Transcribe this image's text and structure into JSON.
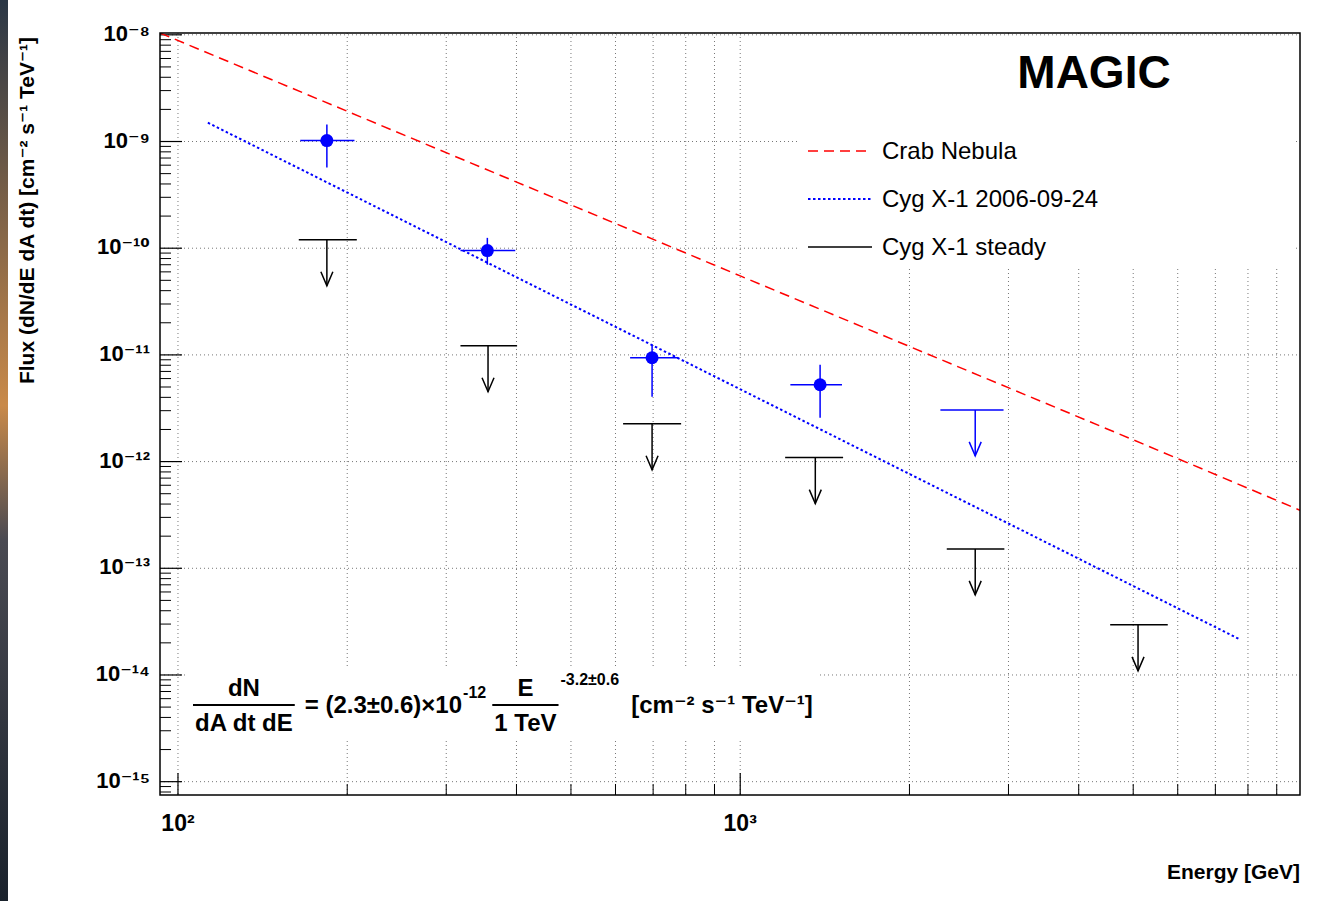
{
  "chart_data": {
    "type": "line",
    "title": "MAGIC",
    "x_label": "Energy [GeV]",
    "y_label": "Flux (dN/dE dA dt) [cm⁻² s⁻¹ TeV⁻¹]",
    "log": true,
    "grid": true,
    "legend": "top-right",
    "xlim": [
      92.9,
      9900
    ],
    "ylim": [
      7.5e-16,
      1.04e-08
    ],
    "xticks": [
      {
        "value": 100,
        "label": "10²"
      },
      {
        "value": 1000,
        "label": "10³"
      }
    ],
    "yticks": [
      {
        "value": 1e-15,
        "label": "10⁻¹⁵"
      },
      {
        "value": 1e-14,
        "label": "10⁻¹⁴"
      },
      {
        "value": 1e-13,
        "label": "10⁻¹³"
      },
      {
        "value": 1e-12,
        "label": "10⁻¹²"
      },
      {
        "value": 1e-11,
        "label": "10⁻¹¹"
      },
      {
        "value": 1e-10,
        "label": "10⁻¹⁰"
      },
      {
        "value": 1e-09,
        "label": "10⁻⁹"
      },
      {
        "value": 1e-08,
        "label": "10⁻⁸"
      }
    ],
    "series": [
      {
        "name": "Crab Nebula",
        "type": "line",
        "color": "#ff0000",
        "line_style": "dashed",
        "x": [
          92.9,
          200,
          500,
          1000,
          2000,
          5000,
          9900
        ],
        "values": [
          1.04e-08,
          1.92e-09,
          2.55e-10,
          5.5e-11,
          1.2e-11,
          1.6e-12,
          3.5e-13
        ]
      },
      {
        "name": "Cyg X-1 2006-09-24",
        "type": "line",
        "color": "#0000ff",
        "line_style": "dotted",
        "x": [
          113,
          7760
        ],
        "values": [
          1.5e-09,
          2.14e-14
        ],
        "flux_points": {
          "marker": "circle",
          "x": [
            184,
            355,
            697,
            1387
          ],
          "values": [
            1.02e-09,
            9.5e-11,
            9.4e-12,
            5.25e-12
          ],
          "x_lower": [
            165,
            318,
            637,
            1228
          ],
          "x_upper": [
            206,
            398,
            776,
            1517
          ],
          "y_lower": [
            5.7e-10,
            7e-11,
            4.05e-12,
            2.57e-12
          ],
          "y_upper": [
            1.44e-09,
            1.25e-10,
            1.24e-11,
            8.1e-12
          ]
        },
        "upper_limits": {
          "x": [
            2618
          ],
          "values": [
            3.05e-12
          ],
          "x_lower": [
            2270
          ],
          "x_upper": [
            2940
          ]
        }
      },
      {
        "name": "Cyg X-1 steady",
        "type": "upper_limit",
        "color": "#000000",
        "line_style": "solid",
        "x": [
          184,
          356,
          697,
          1360,
          2618,
          5100
        ],
        "values": [
          1.2e-10,
          1.22e-11,
          2.26e-12,
          1.09e-12,
          1.52e-13,
          2.95e-14
        ],
        "x_lower": [
          164,
          318,
          619,
          1202,
          2330,
          4550
        ],
        "x_upper": [
          208,
          401,
          785,
          1524,
          2950,
          5760
        ]
      }
    ],
    "annotation": {
      "lhs_numerator": "dN",
      "lhs_denominator": "dA dt dE",
      "coefficient": "= (2.3±0.6)×10",
      "coefficient_exponent": "-12",
      "ratio_numerator": "E",
      "ratio_denominator": "1 TeV",
      "ratio_exponent": "-3.2±0.6",
      "units": "[cm⁻² s⁻¹ TeV⁻¹]"
    }
  }
}
